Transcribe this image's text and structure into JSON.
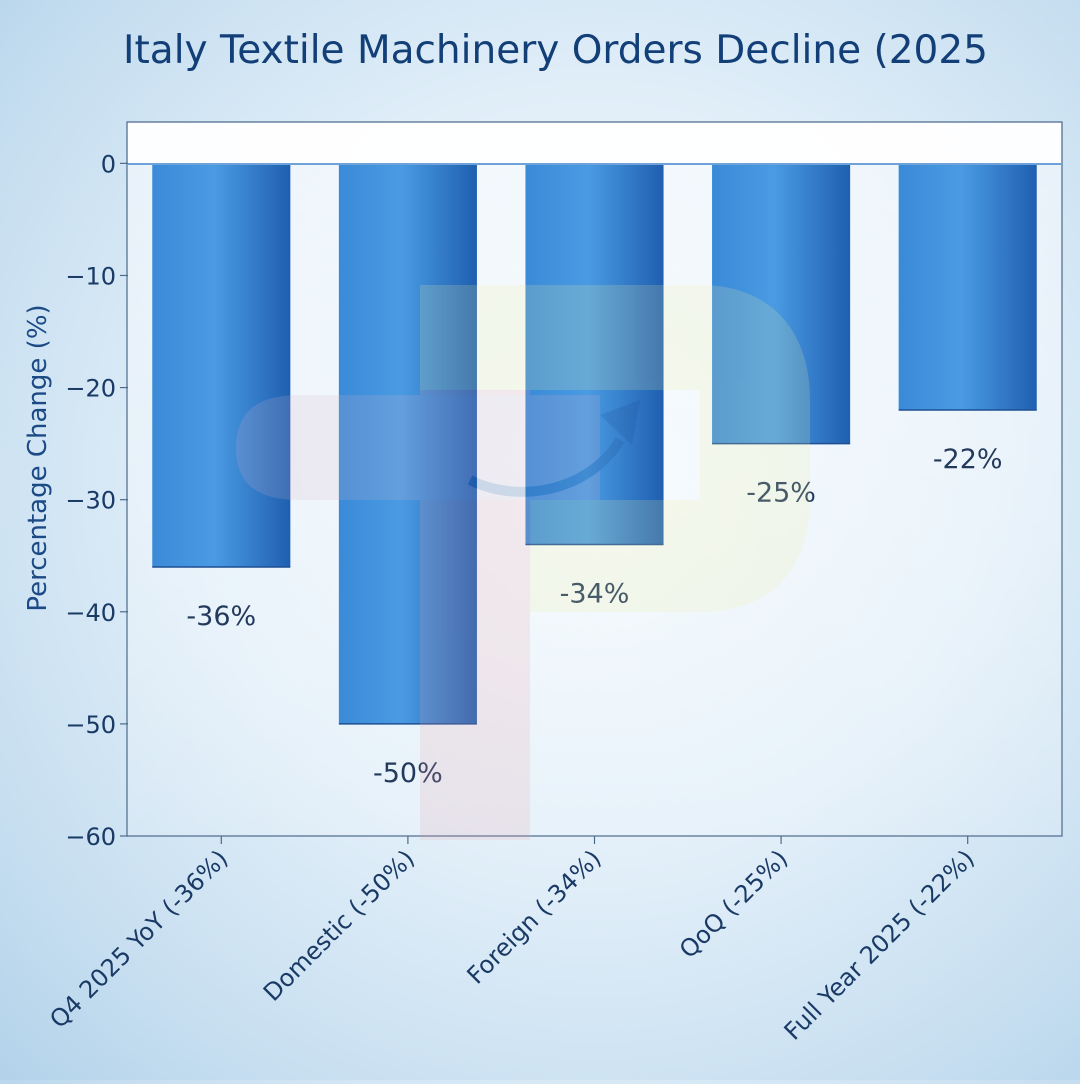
{
  "chart_data": {
    "type": "bar",
    "title": "Italy Textile Machinery Orders Decline (2025",
    "xlabel": "",
    "ylabel": "Percentage Change (%)",
    "categories": [
      "Q4 2025 YoY (-36%)",
      "Domestic (-50%)",
      "Foreign (-34%)",
      "QoQ (-25%)",
      "Full Year 2025 (-22%)"
    ],
    "values": [
      -36,
      -50,
      -34,
      -25,
      -22
    ],
    "data_labels": [
      "-36%",
      "-50%",
      "-34%",
      "-25%",
      "-22%"
    ],
    "ylim": [
      -60,
      3.6
    ],
    "yticks": [
      0,
      -10,
      -20,
      -30,
      -40,
      -50,
      -60
    ],
    "ytick_labels": [
      "0",
      "−10",
      "−20",
      "−30",
      "−40",
      "−50",
      "−60"
    ],
    "grid": false,
    "legend": "none",
    "colors": {
      "bar_dark": "#1f5fb0",
      "bar_mid": "#3a8ad8",
      "bar_light": "#4a9be3",
      "title": "#123f78",
      "axis": "#4d6a8a",
      "zero_line": "#6fa2d8"
    }
  }
}
